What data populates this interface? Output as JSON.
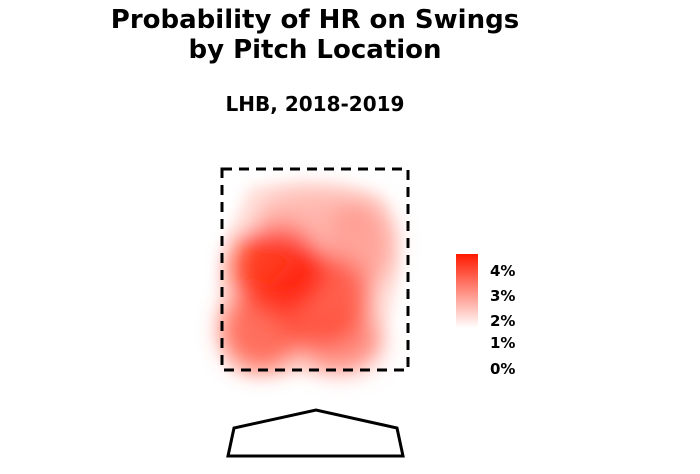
{
  "chart_data": {
    "type": "heatmap",
    "title": "Probability of HR on Swings",
    "title_line2": "by Pitch Location",
    "subtitle": "LHB, 2018-2019",
    "xlabel": "",
    "ylabel": "",
    "color_low": "#ffffff",
    "color_high": "#ff1a00",
    "legend": {
      "position": "right",
      "ticks": [
        "4%",
        "3%",
        "2%",
        "1%",
        "0%"
      ],
      "range": [
        0,
        4.3
      ]
    },
    "hotspots": [
      {
        "zone": "up-in",
        "value": 4.2
      },
      {
        "zone": "middle",
        "value": 3.4
      },
      {
        "zone": "low-in",
        "value": 3.1
      },
      {
        "zone": "low-away",
        "value": 2.4
      },
      {
        "zone": "up-away",
        "value": 1.9
      },
      {
        "zone": "top",
        "value": 1.5
      }
    ]
  }
}
